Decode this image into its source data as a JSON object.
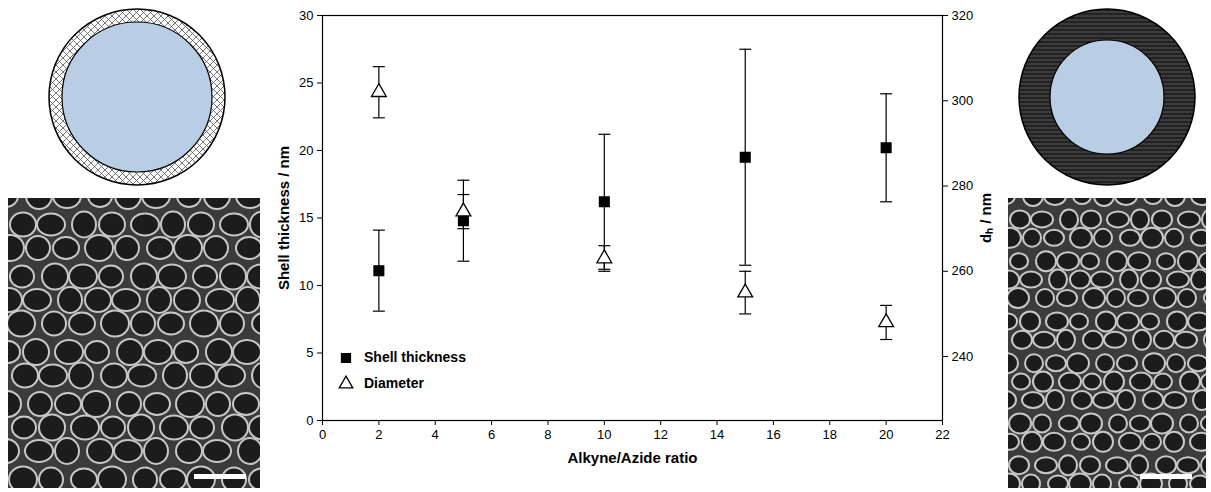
{
  "chart_data": {
    "type": "scatter",
    "x_label": "Alkyne/Azide ratio",
    "y_label": "Shell thickness / nm",
    "y2_label": "dₕ / nm",
    "x": [
      2,
      5,
      10,
      15,
      20
    ],
    "series": [
      {
        "name": "Shell thickness",
        "color": "#000000",
        "marker": "square",
        "values": [
          11.1,
          14.8,
          16.2,
          19.5,
          20.2
        ],
        "errors": [
          3.0,
          3.0,
          5.0,
          8.0,
          4.0
        ]
      },
      {
        "name": "Diameter",
        "color": "#000000",
        "marker": "triangle-open",
        "axis": "y2",
        "values": [
          302,
          274,
          263,
          255,
          248
        ],
        "errors": [
          6,
          4,
          3,
          5,
          4
        ]
      }
    ],
    "xlim": [
      0,
      22
    ],
    "xticks": [
      0,
      2,
      4,
      6,
      8,
      10,
      12,
      14,
      16,
      18,
      20,
      22
    ],
    "ylim": [
      0,
      30
    ],
    "yticks": [
      0,
      5,
      10,
      15,
      20,
      25,
      30
    ],
    "y2lim": [
      225,
      320
    ],
    "y2ticks": [
      240,
      260,
      280,
      300,
      320
    ],
    "legend": "lower left",
    "grid": false
  }
}
